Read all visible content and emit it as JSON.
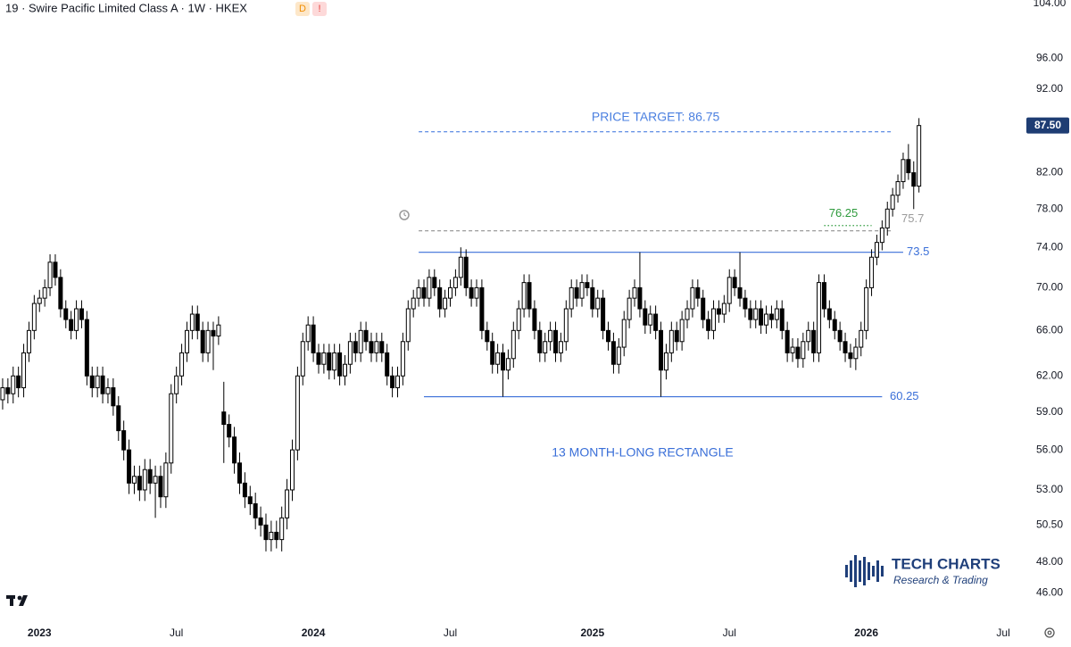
{
  "chart_data": {
    "type": "candlestick",
    "title": "19  · Swire Pacific Limited Class A · 1W · HKEX",
    "badges": [
      "D",
      "!"
    ],
    "log_scale": true,
    "ylim": [
      44.3,
      104
    ],
    "yticks": [
      {
        "value": 104,
        "label": "104.00"
      },
      {
        "value": 96,
        "label": "96.00"
      },
      {
        "value": 92,
        "label": "92.00"
      },
      {
        "value": 82,
        "label": "82.00"
      },
      {
        "value": 78,
        "label": "78.00"
      },
      {
        "value": 74,
        "label": "74.00"
      },
      {
        "value": 70,
        "label": "70.00"
      },
      {
        "value": 66,
        "label": "66.00"
      },
      {
        "value": 62,
        "label": "62.00"
      },
      {
        "value": 59,
        "label": "59.00"
      },
      {
        "value": 56,
        "label": "56.00"
      },
      {
        "value": 53,
        "label": "53.00"
      },
      {
        "value": 50.5,
        "label": "50.50"
      },
      {
        "value": 48,
        "label": "48.00"
      },
      {
        "value": 46,
        "label": "46.00"
      }
    ],
    "xlim": [
      -0.5,
      192.7
    ],
    "xticks": [
      {
        "value": 7,
        "label": "2023"
      },
      {
        "value": 33,
        "label": "Jul"
      },
      {
        "value": 59,
        "label": "2024"
      },
      {
        "value": 85,
        "label": "Jul"
      },
      {
        "value": 112,
        "label": "2025"
      },
      {
        "value": 138,
        "label": "Jul"
      },
      {
        "value": 164,
        "label": "2026"
      },
      {
        "value": 190,
        "label": "Jul"
      }
    ],
    "up_color": "#ffffff",
    "down_color": "#000000",
    "open": [
      60,
      61,
      60.5,
      62,
      61,
      64,
      66,
      68.5,
      69,
      70,
      72.5,
      71,
      68,
      67,
      66,
      68,
      67,
      62,
      61,
      62,
      60.5,
      61,
      59.5,
      57.5,
      56,
      53.5,
      54,
      53,
      54.5,
      53.5,
      54,
      52.5,
      55,
      60.5,
      62,
      64,
      66,
      67.5,
      66,
      64,
      66,
      65.5,
      59,
      58,
      57,
      55,
      53.5,
      52.5,
      52,
      51,
      50.5,
      49.5,
      50,
      49.5,
      51,
      53,
      56,
      62,
      65,
      66.5,
      64,
      63,
      64,
      62.5,
      64,
      62,
      63,
      65,
      64,
      66,
      65,
      64,
      65,
      64,
      62,
      61,
      62,
      65,
      68,
      69,
      70,
      69,
      71,
      70,
      68,
      69,
      70,
      71,
      73,
      70,
      69,
      70,
      66,
      65,
      63,
      64,
      62.5,
      63.5,
      66,
      68,
      70.5,
      68,
      66,
      64,
      65,
      66,
      64,
      65,
      68,
      70,
      69,
      70.5,
      70,
      68,
      69,
      66,
      65,
      63,
      64.5,
      67,
      69,
      70,
      68,
      66.5,
      67.5,
      66,
      62.5,
      64,
      66,
      65,
      67,
      68,
      70,
      69,
      67,
      66,
      68,
      67.5,
      68.5,
      71,
      70,
      69,
      68,
      67,
      68,
      66.5,
      67.5,
      67,
      68,
      66,
      64,
      64.5,
      63.5,
      65,
      66,
      64,
      70.5,
      68,
      67,
      66,
      65,
      64,
      63.5,
      64.5,
      66,
      70,
      73,
      74.5,
      76,
      78,
      79.5,
      81,
      83.5,
      82,
      80.5
    ],
    "high": [
      61.8,
      61.8,
      62.8,
      62.8,
      64.8,
      66.8,
      69.3,
      69.8,
      70.8,
      73.3,
      73.3,
      71.8,
      68.8,
      67.8,
      68.8,
      68.8,
      67.8,
      62.8,
      62.8,
      62.8,
      61.8,
      61.8,
      60.3,
      58.3,
      56.8,
      54.8,
      54.8,
      55.3,
      55.3,
      54.8,
      54.8,
      55.8,
      61.3,
      62.8,
      64.8,
      66.8,
      68.3,
      68.3,
      66.8,
      66.8,
      66.8,
      67.3,
      61.5,
      58.8,
      57.8,
      55.8,
      54.3,
      53.3,
      52.8,
      51.8,
      51.3,
      50.8,
      50.8,
      51.8,
      53.8,
      56.8,
      62.8,
      65.8,
      67.3,
      67.3,
      64.8,
      64.8,
      64.8,
      64.8,
      64.8,
      63.8,
      65.8,
      65.8,
      66.8,
      66.8,
      65.8,
      65.8,
      65.8,
      64.8,
      62.8,
      62.8,
      65.8,
      68.8,
      69.8,
      70.8,
      70.8,
      71.8,
      71.8,
      70.8,
      69.8,
      70.8,
      71.8,
      74,
      73.8,
      70.8,
      70.8,
      70.8,
      66.8,
      65.8,
      64.8,
      64.8,
      64.3,
      66.8,
      68.8,
      71.3,
      71.3,
      68.8,
      66.8,
      65.8,
      66.8,
      66.8,
      65.8,
      68.8,
      70.8,
      70.8,
      71.3,
      71.3,
      70.8,
      69.8,
      69.8,
      66.8,
      65.8,
      65.3,
      67.8,
      69.8,
      70.8,
      73.5,
      68.8,
      68.3,
      68.3,
      66.8,
      64.8,
      66.8,
      66.8,
      67.8,
      68.8,
      70.8,
      70.8,
      69.8,
      67.8,
      68.8,
      68.8,
      69.3,
      71.8,
      71.8,
      73.5,
      69.8,
      68.8,
      68.8,
      68.8,
      68.3,
      68.3,
      68.8,
      68.8,
      66.8,
      65.3,
      65.3,
      65.8,
      66.8,
      66.8,
      71.3,
      71.3,
      68.8,
      67.8,
      66.8,
      65.8,
      64.8,
      65.3,
      66.8,
      70.8,
      73.8,
      75.3,
      76.8,
      78.8,
      80.3,
      81.8,
      84.3,
      85.3,
      83.3,
      88.4
    ],
    "low": [
      59.2,
      59.7,
      59.7,
      60.2,
      60.2,
      63.2,
      65.2,
      67.7,
      68.2,
      69.2,
      70.2,
      67.2,
      66.2,
      65.2,
      65.2,
      66.2,
      61.2,
      60.2,
      60.2,
      59.7,
      59.7,
      58.7,
      56.7,
      55.2,
      52.7,
      52.7,
      52.2,
      52.2,
      52.7,
      51,
      51.7,
      51.7,
      54.2,
      59.7,
      61.2,
      63.2,
      65.2,
      65.2,
      63.2,
      63.2,
      62.5,
      64.7,
      55,
      56.2,
      54.2,
      52.7,
      51.7,
      51.2,
      50.2,
      49.7,
      48.7,
      48.7,
      48.9,
      48.7,
      50.2,
      52.2,
      55.2,
      61.2,
      64.2,
      63.2,
      62.2,
      62.2,
      61.7,
      61.7,
      61.2,
      61.2,
      62.2,
      63.2,
      63.2,
      64.2,
      63.2,
      63.2,
      63.2,
      61.2,
      60.2,
      60.2,
      61.2,
      64.2,
      67.2,
      68.2,
      68.2,
      68.2,
      69.2,
      67.2,
      67.2,
      68.2,
      69.2,
      70.2,
      69.2,
      68.2,
      68.2,
      65.2,
      64.2,
      62.2,
      62.2,
      60.25,
      61.7,
      62.7,
      65.2,
      67.2,
      67.2,
      65.2,
      63.2,
      63.2,
      64.2,
      63.2,
      63.2,
      64.2,
      67.2,
      68.2,
      68.2,
      69.2,
      67.2,
      67.2,
      65.2,
      64.2,
      62.2,
      62.2,
      63.7,
      66.2,
      68.2,
      67.2,
      65.7,
      65.7,
      65.2,
      60.25,
      61.7,
      63.2,
      64.2,
      64.2,
      66.2,
      67.2,
      68.2,
      66.2,
      65.2,
      65.2,
      66.7,
      66.7,
      67.7,
      69.2,
      68.2,
      67.2,
      66.2,
      66.2,
      65.7,
      65.7,
      66.2,
      66.2,
      65.2,
      63.2,
      63.2,
      62.7,
      62.7,
      64.2,
      63.2,
      63.2,
      67.2,
      66.2,
      65.2,
      64.2,
      63.2,
      62.7,
      62.5,
      63.7,
      65.2,
      69.2,
      72.2,
      73.7,
      75.2,
      77.2,
      78.7,
      80.2,
      81.2,
      78,
      79.8
    ],
    "close": [
      61,
      60.5,
      62,
      61,
      64,
      66,
      68.5,
      69,
      70,
      72.5,
      71,
      68,
      67,
      66,
      68,
      67,
      62,
      61,
      62,
      60.5,
      61,
      59.5,
      57.5,
      56,
      53.5,
      54,
      53,
      54.5,
      53.5,
      54,
      52.5,
      55,
      60.5,
      62,
      64,
      66,
      67.5,
      66,
      64,
      66,
      65.5,
      66.5,
      58,
      57,
      55,
      53.5,
      52.5,
      52,
      51,
      50.5,
      49.5,
      50,
      49.5,
      51,
      53,
      56,
      62,
      65,
      66.5,
      64,
      63,
      64,
      62.5,
      64,
      62,
      63,
      65,
      64,
      66,
      65,
      64,
      65,
      64,
      62,
      61,
      62,
      65,
      68,
      69,
      70,
      69,
      71,
      70,
      68,
      69,
      70,
      71,
      73,
      70,
      69,
      70,
      66,
      65,
      63,
      64,
      62.5,
      63.5,
      66,
      68,
      70.5,
      68,
      66,
      64,
      65,
      66,
      64,
      65,
      68,
      70,
      69,
      70.5,
      70,
      68,
      69,
      66,
      65,
      63,
      64.5,
      67,
      69,
      70,
      68,
      66.5,
      67.5,
      66,
      62.5,
      64,
      66,
      65,
      67,
      68,
      70,
      69,
      67,
      66,
      68,
      67.5,
      68.5,
      71,
      70,
      69,
      68,
      67,
      68,
      66.5,
      67.5,
      67,
      68,
      66,
      64,
      64.5,
      63.5,
      65,
      66,
      64,
      70.5,
      68,
      67,
      66,
      65,
      64,
      63.5,
      64.5,
      66,
      70,
      73,
      74.5,
      76,
      78,
      79.5,
      81,
      83.5,
      82,
      80.5,
      87.5
    ],
    "last_price": {
      "value": 87.5,
      "label": "87.50"
    },
    "levels": [
      {
        "value": 86.75,
        "caption": "PRICE TARGET: 86.75",
        "color": "#4a7fe0",
        "dash": "dashed"
      },
      {
        "value": 76.25,
        "color": "#2e9a3c",
        "dash": "dotted"
      },
      {
        "value": 75.7,
        "color": "#9a9a9a",
        "dash": "dashed"
      },
      {
        "value": 73.5,
        "color": "#3a6fd8",
        "dash": "solid"
      },
      {
        "value": 60.25,
        "color": "#3a6fd8",
        "dash": "solid"
      }
    ],
    "note": "13 MONTH-LONG RECTANGLE",
    "watermark": {
      "name": "TECH CHARTS",
      "tagline": "Research & Trading"
    }
  }
}
